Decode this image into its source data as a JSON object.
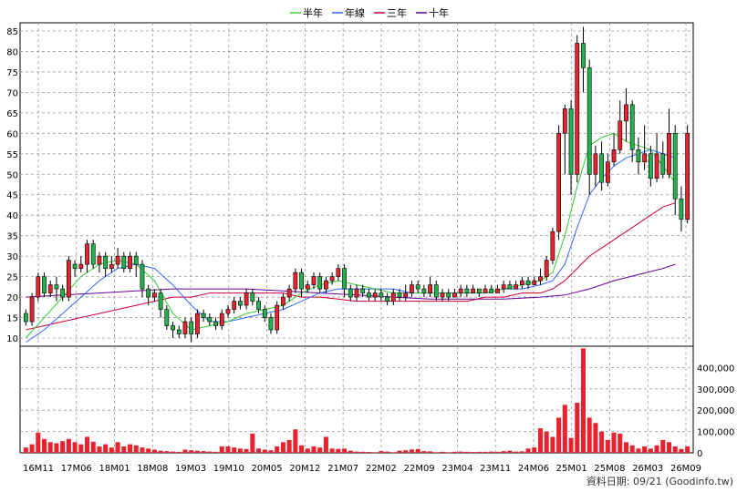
{
  "chart_data": {
    "type": "candlestick_with_volume",
    "legend": [
      {
        "label": "半年",
        "color": "#33cc33"
      },
      {
        "label": "年線",
        "color": "#3366ff"
      },
      {
        "label": "三年",
        "color": "#cc0033"
      },
      {
        "label": "十年",
        "color": "#660099"
      }
    ],
    "legend_position": "top-center",
    "grid": true,
    "price_axis": {
      "ylim": [
        8,
        87
      ],
      "ticks": [
        10,
        15,
        20,
        25,
        30,
        35,
        40,
        45,
        50,
        55,
        60,
        65,
        70,
        75,
        80,
        85
      ],
      "side": "left"
    },
    "volume_axis": {
      "ylim": [
        0,
        500000
      ],
      "ticks": [
        0,
        100000,
        200000,
        300000,
        400000
      ],
      "tick_labels": [
        "0",
        "100,000",
        "200,000",
        "300,000",
        "400,000"
      ],
      "side": "right"
    },
    "x_ticks": [
      "16M11",
      "17M06",
      "18M01",
      "18M08",
      "19M03",
      "19M10",
      "20M05",
      "20M12",
      "21M07",
      "22M02",
      "22M09",
      "23M04",
      "23M11",
      "24M06",
      "25M01",
      "25M08",
      "26M03",
      "26M09"
    ],
    "candles": [
      [
        16,
        14,
        17,
        13
      ],
      [
        14,
        20,
        21,
        13
      ],
      [
        20,
        25,
        26,
        19
      ],
      [
        25,
        21,
        26,
        20
      ],
      [
        21,
        23,
        24,
        20
      ],
      [
        23,
        22,
        25,
        19
      ],
      [
        22,
        20,
        23,
        19
      ],
      [
        20,
        29,
        30,
        19
      ],
      [
        28,
        27,
        29,
        25
      ],
      [
        27,
        28,
        30,
        26
      ],
      [
        28,
        33,
        34,
        26
      ],
      [
        33,
        28,
        34,
        27
      ],
      [
        28,
        30,
        31,
        26
      ],
      [
        30,
        27,
        31,
        25
      ],
      [
        27,
        28,
        30,
        26
      ],
      [
        28,
        30,
        32,
        27
      ],
      [
        30,
        27,
        31,
        26
      ],
      [
        27,
        30,
        31,
        26
      ],
      [
        30,
        28,
        31,
        25
      ],
      [
        28,
        22,
        29,
        20
      ],
      [
        22,
        20,
        23,
        18
      ],
      [
        20,
        21,
        22,
        19
      ],
      [
        21,
        17,
        22,
        15
      ],
      [
        17,
        13,
        18,
        12
      ],
      [
        13,
        12,
        14,
        10
      ],
      [
        12,
        11,
        13,
        10
      ],
      [
        11,
        14,
        15,
        10
      ],
      [
        14,
        11,
        15,
        9
      ],
      [
        11,
        16,
        17,
        10
      ],
      [
        16,
        15,
        17,
        14
      ],
      [
        15,
        14,
        16,
        13
      ],
      [
        14,
        13,
        15,
        12
      ],
      [
        13,
        16,
        17,
        12
      ],
      [
        16,
        17,
        18,
        15
      ],
      [
        17,
        19,
        20,
        16
      ],
      [
        19,
        18,
        20,
        17
      ],
      [
        18,
        21,
        22,
        17
      ],
      [
        21,
        19,
        22,
        18
      ],
      [
        19,
        17,
        20,
        16
      ],
      [
        17,
        15,
        18,
        14
      ],
      [
        15,
        12,
        16,
        11
      ],
      [
        12,
        18,
        19,
        11
      ],
      [
        18,
        20,
        21,
        17
      ],
      [
        20,
        22,
        23,
        19
      ],
      [
        22,
        26,
        27,
        21
      ],
      [
        26,
        22,
        27,
        20
      ],
      [
        22,
        23,
        24,
        21
      ],
      [
        23,
        25,
        26,
        22
      ],
      [
        25,
        22,
        26,
        21
      ],
      [
        22,
        24,
        25,
        21
      ],
      [
        24,
        25,
        26,
        23
      ],
      [
        25,
        27,
        28,
        24
      ],
      [
        27,
        22,
        28,
        20
      ],
      [
        22,
        20,
        23,
        19
      ],
      [
        20,
        22,
        23,
        19
      ],
      [
        22,
        21,
        23,
        20
      ],
      [
        21,
        20,
        22,
        19
      ],
      [
        20,
        21,
        22,
        19
      ],
      [
        21,
        20,
        22,
        19
      ],
      [
        20,
        19,
        21,
        18
      ],
      [
        19,
        21,
        22,
        18
      ],
      [
        21,
        20,
        22,
        19
      ],
      [
        20,
        21,
        23,
        19
      ],
      [
        21,
        23,
        24,
        20
      ],
      [
        23,
        22,
        24,
        21
      ],
      [
        22,
        21,
        23,
        20
      ],
      [
        21,
        23,
        25,
        20
      ],
      [
        23,
        20,
        24,
        19
      ],
      [
        20,
        21,
        22,
        19
      ],
      [
        21,
        20,
        22,
        19
      ],
      [
        20,
        21,
        22,
        20
      ],
      [
        21,
        22,
        23,
        20
      ],
      [
        22,
        21,
        23,
        20
      ],
      [
        21,
        22,
        23,
        21
      ],
      [
        22,
        21,
        22,
        20
      ],
      [
        21,
        22,
        23,
        21
      ],
      [
        22,
        21,
        23,
        21
      ],
      [
        21,
        22,
        23,
        21
      ],
      [
        22,
        23,
        24,
        21
      ],
      [
        23,
        22,
        24,
        22
      ],
      [
        22,
        23,
        24,
        22
      ],
      [
        23,
        24,
        25,
        22
      ],
      [
        24,
        23,
        25,
        22
      ],
      [
        23,
        24,
        25,
        23
      ],
      [
        24,
        25,
        27,
        23
      ],
      [
        25,
        29,
        30,
        24
      ],
      [
        29,
        36,
        37,
        28
      ],
      [
        36,
        60,
        62,
        34
      ],
      [
        60,
        66,
        67,
        50
      ],
      [
        66,
        50,
        68,
        45
      ],
      [
        50,
        82,
        84,
        48
      ],
      [
        82,
        76,
        86,
        70
      ],
      [
        76,
        50,
        78,
        45
      ],
      [
        50,
        55,
        57,
        47
      ],
      [
        55,
        48,
        58,
        46
      ],
      [
        48,
        53,
        55,
        47
      ],
      [
        53,
        56,
        60,
        52
      ],
      [
        56,
        63,
        68,
        55
      ],
      [
        63,
        67,
        71,
        58
      ],
      [
        67,
        56,
        68,
        53
      ],
      [
        56,
        53,
        59,
        50
      ],
      [
        53,
        55,
        62,
        51
      ],
      [
        55,
        49,
        57,
        47
      ],
      [
        49,
        55,
        60,
        48
      ],
      [
        55,
        50,
        58,
        49
      ],
      [
        50,
        60,
        66,
        49
      ],
      [
        60,
        44,
        62,
        40
      ],
      [
        44,
        39,
        47,
        36
      ],
      [
        39,
        60,
        62,
        38
      ]
    ],
    "volume": [
      25000,
      40000,
      95000,
      65000,
      50000,
      45000,
      55000,
      65000,
      50000,
      40000,
      75000,
      52000,
      30000,
      40000,
      25000,
      50000,
      30000,
      40000,
      35000,
      25000,
      20000,
      15000,
      10000,
      8000,
      6000,
      5000,
      15000,
      12000,
      10000,
      8000,
      6000,
      5000,
      30000,
      30000,
      25000,
      20000,
      18000,
      90000,
      20000,
      15000,
      12000,
      30000,
      50000,
      60000,
      110000,
      35000,
      20000,
      30000,
      25000,
      75000,
      20000,
      18000,
      20000,
      10000,
      6000,
      5000,
      4000,
      3000,
      8000,
      6000,
      3000,
      10000,
      12000,
      16000,
      18000,
      8000,
      7000,
      3000,
      5000,
      3000,
      5000,
      6000,
      5000,
      4000,
      5000,
      5000,
      6000,
      5000,
      8000,
      10000,
      6000,
      7000,
      20000,
      25000,
      115000,
      100000,
      75000,
      165000,
      225000,
      70000,
      235000,
      490000,
      165000,
      140000,
      100000,
      60000,
      95000,
      90000,
      50000,
      35000,
      20000,
      30000,
      20000,
      35000,
      60000,
      50000,
      30000,
      18000,
      30000
    ],
    "ma_half_year": [
      [
        0,
        10
      ],
      [
        3,
        15
      ],
      [
        6,
        20
      ],
      [
        9,
        25
      ],
      [
        12,
        28
      ],
      [
        15,
        29
      ],
      [
        18,
        28
      ],
      [
        21,
        24
      ],
      [
        24,
        16
      ],
      [
        27,
        12
      ],
      [
        30,
        13
      ],
      [
        33,
        14
      ],
      [
        36,
        16
      ],
      [
        39,
        17
      ],
      [
        42,
        18
      ],
      [
        45,
        21
      ],
      [
        48,
        23
      ],
      [
        51,
        24
      ],
      [
        54,
        23
      ],
      [
        57,
        22
      ],
      [
        60,
        21
      ],
      [
        63,
        21
      ],
      [
        66,
        21
      ],
      [
        69,
        21
      ],
      [
        72,
        21
      ],
      [
        75,
        21
      ],
      [
        78,
        22
      ],
      [
        81,
        23
      ],
      [
        84,
        24
      ],
      [
        86,
        26
      ],
      [
        88,
        35
      ],
      [
        90,
        47
      ],
      [
        92,
        57
      ],
      [
        94,
        59
      ],
      [
        96,
        60
      ],
      [
        98,
        58
      ],
      [
        100,
        57
      ],
      [
        102,
        56
      ],
      [
        104,
        52
      ],
      [
        106,
        48
      ]
    ],
    "ma_year": [
      [
        0,
        9
      ],
      [
        3,
        12
      ],
      [
        6,
        16
      ],
      [
        9,
        20
      ],
      [
        12,
        24
      ],
      [
        15,
        27
      ],
      [
        18,
        28
      ],
      [
        21,
        27
      ],
      [
        24,
        23
      ],
      [
        27,
        18
      ],
      [
        30,
        14
      ],
      [
        33,
        14
      ],
      [
        36,
        15
      ],
      [
        39,
        16
      ],
      [
        42,
        17
      ],
      [
        45,
        19
      ],
      [
        48,
        21
      ],
      [
        51,
        22
      ],
      [
        54,
        22
      ],
      [
        57,
        22
      ],
      [
        60,
        22
      ],
      [
        63,
        21
      ],
      [
        66,
        21
      ],
      [
        69,
        21
      ],
      [
        72,
        21
      ],
      [
        75,
        21
      ],
      [
        78,
        22
      ],
      [
        81,
        22
      ],
      [
        84,
        23
      ],
      [
        86,
        24
      ],
      [
        88,
        28
      ],
      [
        90,
        37
      ],
      [
        92,
        45
      ],
      [
        94,
        49
      ],
      [
        96,
        52
      ],
      [
        98,
        54
      ],
      [
        100,
        55
      ],
      [
        102,
        56
      ],
      [
        104,
        55
      ],
      [
        106,
        54
      ]
    ],
    "ma_three_year": [
      [
        0,
        12
      ],
      [
        3,
        13
      ],
      [
        6,
        14
      ],
      [
        9,
        15
      ],
      [
        12,
        16
      ],
      [
        15,
        17
      ],
      [
        18,
        18
      ],
      [
        21,
        19
      ],
      [
        24,
        20
      ],
      [
        27,
        20
      ],
      [
        30,
        21
      ],
      [
        33,
        21
      ],
      [
        36,
        21
      ],
      [
        39,
        21
      ],
      [
        42,
        21
      ],
      [
        45,
        20
      ],
      [
        48,
        20
      ],
      [
        51,
        19.5
      ],
      [
        54,
        19
      ],
      [
        57,
        19
      ],
      [
        60,
        19
      ],
      [
        63,
        19
      ],
      [
        66,
        19
      ],
      [
        69,
        19
      ],
      [
        72,
        19
      ],
      [
        75,
        20
      ],
      [
        78,
        20
      ],
      [
        81,
        21
      ],
      [
        84,
        21
      ],
      [
        86,
        22
      ],
      [
        88,
        24
      ],
      [
        90,
        27
      ],
      [
        92,
        30
      ],
      [
        94,
        32
      ],
      [
        96,
        34
      ],
      [
        98,
        36
      ],
      [
        100,
        38
      ],
      [
        102,
        40
      ],
      [
        104,
        42
      ],
      [
        106,
        43
      ]
    ],
    "ma_ten_year": [
      [
        0,
        20
      ],
      [
        6,
        20.5
      ],
      [
        12,
        21
      ],
      [
        18,
        21.5
      ],
      [
        24,
        22
      ],
      [
        30,
        22
      ],
      [
        36,
        22
      ],
      [
        42,
        21.5
      ],
      [
        48,
        21
      ],
      [
        54,
        20.5
      ],
      [
        60,
        20
      ],
      [
        66,
        19.5
      ],
      [
        72,
        19.5
      ],
      [
        78,
        19.5
      ],
      [
        84,
        20
      ],
      [
        88,
        20.5
      ],
      [
        92,
        22
      ],
      [
        96,
        24
      ],
      [
        100,
        25.5
      ],
      [
        104,
        27
      ],
      [
        106,
        28
      ]
    ]
  },
  "footer": {
    "source": "資料日期: 09/21  (Goodinfo.tw)"
  }
}
